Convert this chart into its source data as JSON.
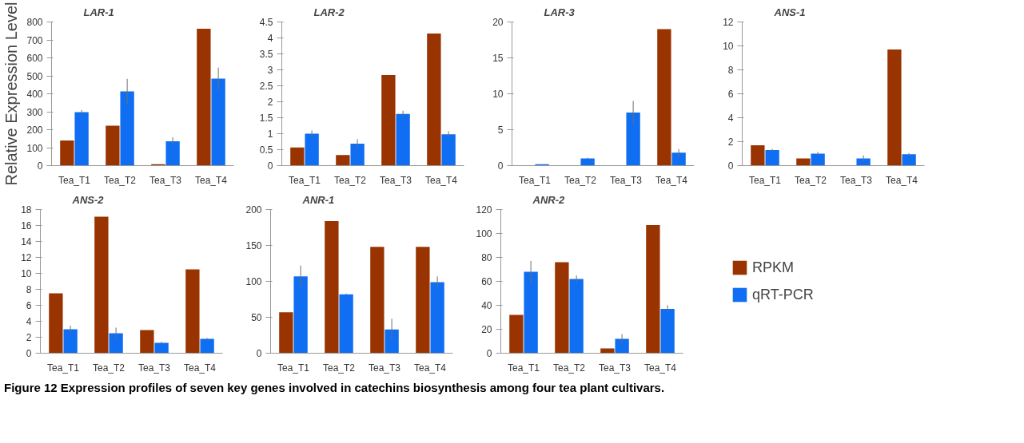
{
  "chart_data": [
    {
      "type": "bar",
      "title": "LAR-1",
      "ylabel": "Relative Expression Level",
      "categories": [
        "Tea_T1",
        "Tea_T2",
        "Tea_T3",
        "Tea_T4"
      ],
      "ylim": [
        0,
        800
      ],
      "yticks": [
        0,
        100,
        200,
        300,
        400,
        500,
        600,
        700,
        800
      ],
      "grid": false,
      "legend": false,
      "series": [
        {
          "color": "#993300",
          "values": [
            140,
            222,
            8,
            762
          ]
        },
        {
          "color": "#0f6ef2",
          "values": [
            298,
            413,
            136,
            484
          ],
          "errors": [
            12,
            70,
            22,
            62
          ]
        }
      ]
    },
    {
      "type": "bar",
      "title": "LAR-2",
      "categories": [
        "Tea_T1",
        "Tea_T2",
        "Tea_T3",
        "Tea_T4"
      ],
      "ylim": [
        0,
        4.5
      ],
      "yticks": [
        0,
        0.5,
        1,
        1.5,
        2,
        2.5,
        3,
        3.5,
        4,
        4.5
      ],
      "grid": false,
      "legend": false,
      "series": [
        {
          "color": "#993300",
          "values": [
            0.57,
            0.33,
            2.84,
            4.14
          ]
        },
        {
          "color": "#0f6ef2",
          "values": [
            1.0,
            0.69,
            1.62,
            0.98
          ],
          "errors": [
            0.1,
            0.14,
            0.1,
            0.1
          ]
        }
      ]
    },
    {
      "type": "bar",
      "title": "LAR-3",
      "categories": [
        "Tea_T1",
        "Tea_T2",
        "Tea_T3",
        "Tea_T4"
      ],
      "ylim": [
        0,
        20
      ],
      "yticks": [
        0,
        5,
        10,
        15,
        20
      ],
      "grid": false,
      "legend": false,
      "series": [
        {
          "color": "#993300",
          "values": [
            0,
            0,
            0,
            19.0
          ]
        },
        {
          "color": "#0f6ef2",
          "values": [
            0.2,
            1.0,
            7.4,
            1.8
          ],
          "errors": [
            null,
            0.1,
            1.6,
            0.5
          ]
        }
      ]
    },
    {
      "type": "bar",
      "title": "ANS-1",
      "categories": [
        "Tea_T1",
        "Tea_T2",
        "Tea_T3",
        "Tea_T4"
      ],
      "ylim": [
        0,
        12
      ],
      "yticks": [
        0,
        2,
        4,
        6,
        8,
        10,
        12
      ],
      "grid": false,
      "legend": false,
      "series": [
        {
          "color": "#993300",
          "values": [
            1.7,
            0.6,
            0,
            9.7
          ]
        },
        {
          "color": "#0f6ef2",
          "values": [
            1.3,
            1.0,
            0.6,
            0.95
          ],
          "errors": [
            0.1,
            0.15,
            0.25,
            0.1
          ]
        }
      ]
    },
    {
      "type": "bar",
      "title": "ANS-2",
      "categories": [
        "Tea_T1",
        "Tea_T2",
        "Tea_T3",
        "Tea_T4"
      ],
      "ylim": [
        0,
        18
      ],
      "yticks": [
        0,
        2,
        4,
        6,
        8,
        10,
        12,
        14,
        16,
        18
      ],
      "grid": false,
      "legend": false,
      "series": [
        {
          "color": "#993300",
          "values": [
            7.5,
            17.1,
            2.9,
            10.5
          ]
        },
        {
          "color": "#0f6ef2",
          "values": [
            3.0,
            2.5,
            1.3,
            1.8
          ],
          "errors": [
            0.45,
            0.7,
            0.15,
            0.1
          ]
        }
      ]
    },
    {
      "type": "bar",
      "title": "ANR-1",
      "categories": [
        "Tea_T1",
        "Tea_T2",
        "Tea_T3",
        "Tea_T4"
      ],
      "ylim": [
        0,
        200
      ],
      "yticks": [
        0,
        50,
        100,
        150,
        200
      ],
      "grid": false,
      "legend": false,
      "series": [
        {
          "color": "#993300",
          "values": [
            57,
            184,
            148,
            148
          ]
        },
        {
          "color": "#0f6ef2",
          "values": [
            107,
            82,
            33,
            99
          ],
          "errors": [
            15,
            1,
            15,
            8
          ]
        }
      ]
    },
    {
      "type": "bar",
      "title": "ANR-2",
      "categories": [
        "Tea_T1",
        "Tea_T2",
        "Tea_T3",
        "Tea_T4"
      ],
      "ylim": [
        0,
        120
      ],
      "yticks": [
        0,
        20,
        40,
        60,
        80,
        100,
        120
      ],
      "grid": false,
      "legend": "right",
      "annotations": [
        "Figure 12 Expression profiles of seven key genes involved in catechins biosynthesis among four tea plant cultivars."
      ],
      "series": [
        {
          "name": "RPKM",
          "color": "#993300",
          "values": [
            32,
            76,
            4,
            107
          ]
        },
        {
          "name": "qRT-PCR",
          "color": "#0f6ef2",
          "values": [
            68,
            62,
            12,
            37
          ],
          "errors": [
            9,
            3,
            4,
            3
          ]
        }
      ]
    }
  ]
}
